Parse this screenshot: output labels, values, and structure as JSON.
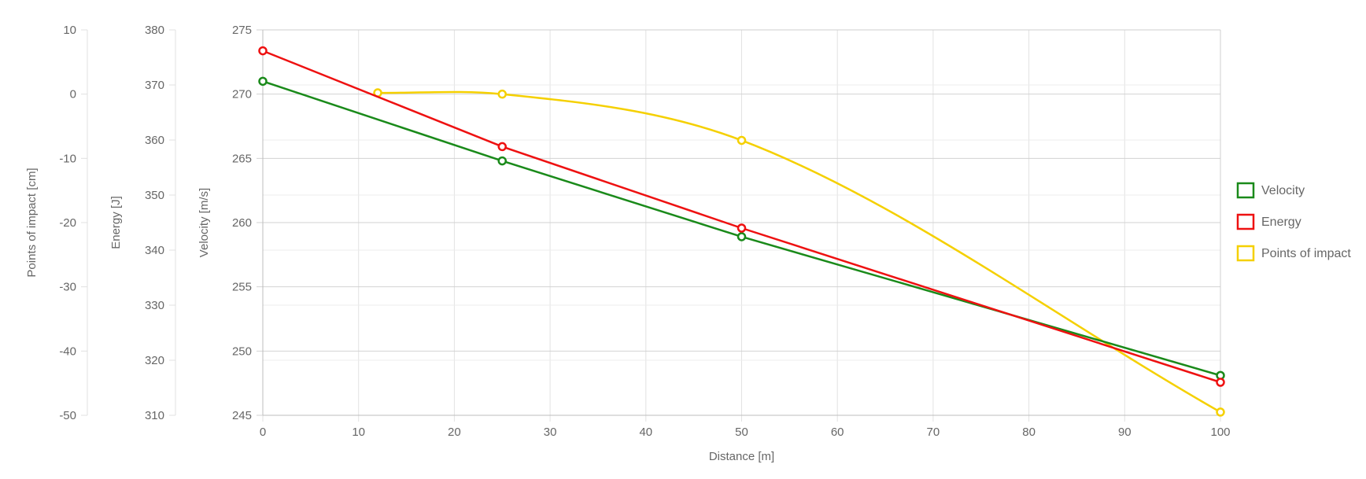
{
  "chart_data": {
    "type": "line",
    "xlabel": "Distance [m]",
    "xlim": [
      0,
      100
    ],
    "x_ticks": [
      0,
      10,
      20,
      30,
      40,
      50,
      60,
      70,
      80,
      90,
      100
    ],
    "grid": true,
    "legend_position": "right",
    "y_axes": [
      {
        "id": "velocity",
        "label": "Velocity [m/s]",
        "ylim": [
          245,
          275
        ],
        "ticks": [
          245,
          250,
          255,
          260,
          265,
          270,
          275
        ]
      },
      {
        "id": "energy",
        "label": "Energy [J]",
        "ylim": [
          310,
          380
        ],
        "ticks": [
          310,
          320,
          330,
          340,
          350,
          360,
          370,
          380
        ]
      },
      {
        "id": "poi",
        "label": "Points of impact [cm]",
        "ylim": [
          -50,
          10
        ],
        "ticks": [
          -50,
          -40,
          -30,
          -20,
          -10,
          0,
          10
        ]
      }
    ],
    "series": [
      {
        "name": "Velocity",
        "axis": "velocity",
        "color": "#1a8a1a",
        "x": [
          0,
          25,
          50,
          100
        ],
        "y": [
          271.0,
          264.8,
          258.9,
          248.1
        ]
      },
      {
        "name": "Energy",
        "axis": "energy",
        "color": "#ee1111",
        "x": [
          0,
          25,
          50,
          100
        ],
        "y": [
          376.2,
          358.8,
          344.0,
          316.0
        ]
      },
      {
        "name": "Points of impact",
        "axis": "poi",
        "color": "#f5d000",
        "x": [
          12,
          25,
          50,
          100
        ],
        "y": [
          0.2,
          0.0,
          -7.2,
          -49.5
        ]
      }
    ]
  }
}
